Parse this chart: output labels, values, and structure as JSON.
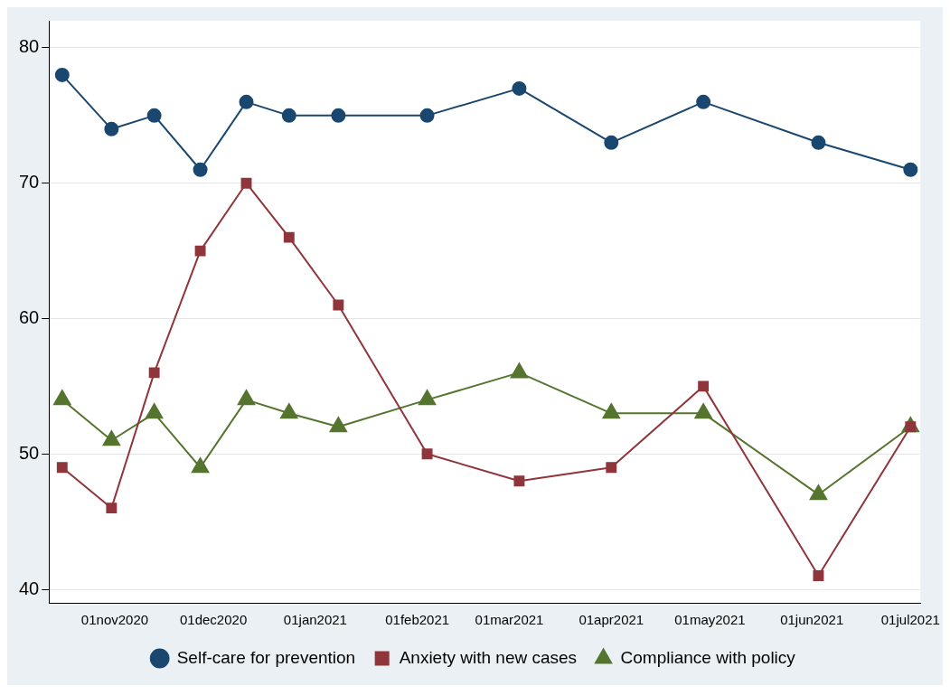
{
  "chart_data": {
    "type": "line",
    "x": [
      "2020-10-16",
      "2020-10-31",
      "2020-11-13",
      "2020-11-27",
      "2020-12-11",
      "2020-12-24",
      "2021-01-08",
      "2021-02-04",
      "2021-03-04",
      "2021-04-01",
      "2021-04-29",
      "2021-06-03",
      "2021-07-01"
    ],
    "series": [
      {
        "name": "Self-care for prevention",
        "color": "#1a476f",
        "marker": "circle",
        "values": [
          78,
          74,
          75,
          71,
          76,
          75,
          75,
          75,
          77,
          73,
          76,
          73,
          71
        ]
      },
      {
        "name": "Anxiety with new cases",
        "color": "#90353b",
        "marker": "square",
        "values": [
          49,
          46,
          56,
          65,
          70,
          66,
          61,
          50,
          48,
          49,
          55,
          41,
          52
        ]
      },
      {
        "name": "Compliance with policy",
        "color": "#55752f",
        "marker": "triangle",
        "values": [
          54,
          51,
          53,
          49,
          54,
          53,
          52,
          54,
          56,
          53,
          53,
          47,
          52
        ]
      }
    ],
    "xlim": [
      "2020-10-12",
      "2021-07-04"
    ],
    "xticks": [
      {
        "value": "2020-11-01",
        "label": "01nov2020"
      },
      {
        "value": "2020-12-01",
        "label": "01dec2020"
      },
      {
        "value": "2021-01-01",
        "label": "01jan2021"
      },
      {
        "value": "2021-02-01",
        "label": "01feb2021"
      },
      {
        "value": "2021-03-01",
        "label": "01mar2021"
      },
      {
        "value": "2021-04-01",
        "label": "01apr2021"
      },
      {
        "value": "2021-05-01",
        "label": "01may2021"
      },
      {
        "value": "2021-06-01",
        "label": "01jun2021"
      },
      {
        "value": "2021-07-01",
        "label": "01jul2021"
      }
    ],
    "ylim": [
      39,
      82
    ],
    "yticks": [
      40,
      50,
      60,
      70,
      80
    ],
    "grid": "y",
    "legend": "bottom",
    "line_style": "solid"
  }
}
